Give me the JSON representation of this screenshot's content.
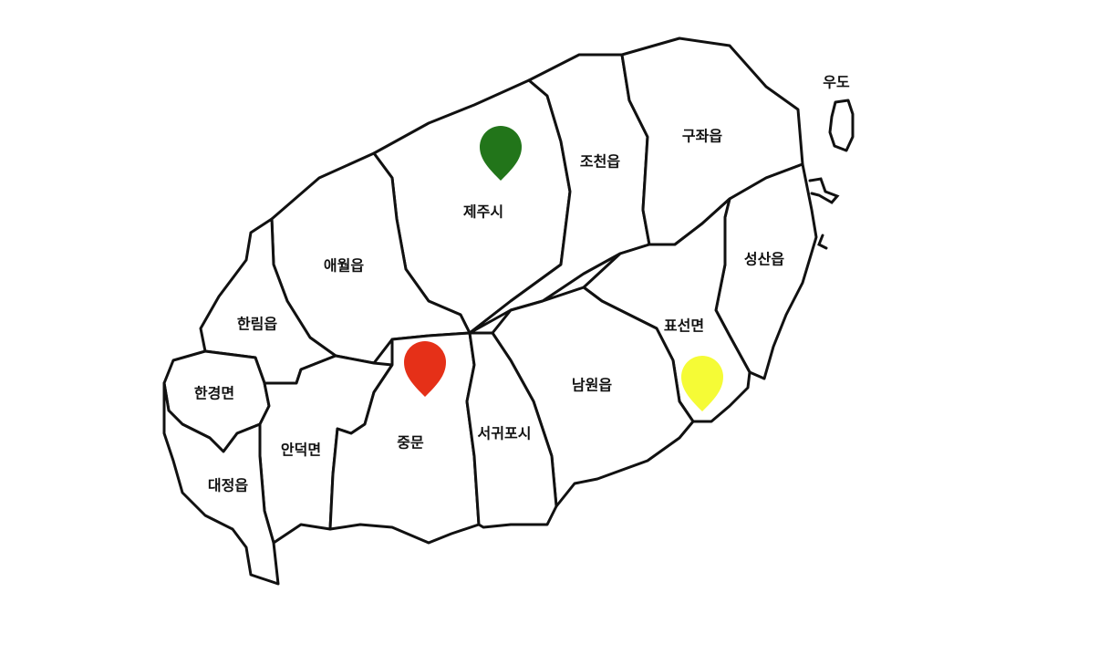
{
  "map": {
    "regions": [
      {
        "id": "jeju-si",
        "label": "제주시"
      },
      {
        "id": "jocheon-eup",
        "label": "조천읍"
      },
      {
        "id": "gujwa-eup",
        "label": "구좌읍"
      },
      {
        "id": "aewol-eup",
        "label": "애월읍"
      },
      {
        "id": "seongsan-eup",
        "label": "성산읍"
      },
      {
        "id": "hallim-eup",
        "label": "한림읍"
      },
      {
        "id": "pyoseon-myeon",
        "label": "표선면"
      },
      {
        "id": "hangyeong-myeon",
        "label": "한경면"
      },
      {
        "id": "namwon-eup",
        "label": "남원읍"
      },
      {
        "id": "andeok-myeon",
        "label": "안덕면"
      },
      {
        "id": "jungmun",
        "label": "중문"
      },
      {
        "id": "seogwipo-si",
        "label": "서귀포시"
      },
      {
        "id": "daejeong-eup",
        "label": "대정읍"
      },
      {
        "id": "udo",
        "label": "우도"
      }
    ],
    "markers": [
      {
        "id": "jeju-si",
        "color": "#22751a"
      },
      {
        "id": "jungmun",
        "color": "#e53018"
      },
      {
        "id": "pyoseon-myeon",
        "color": "#f5fb36"
      }
    ]
  }
}
